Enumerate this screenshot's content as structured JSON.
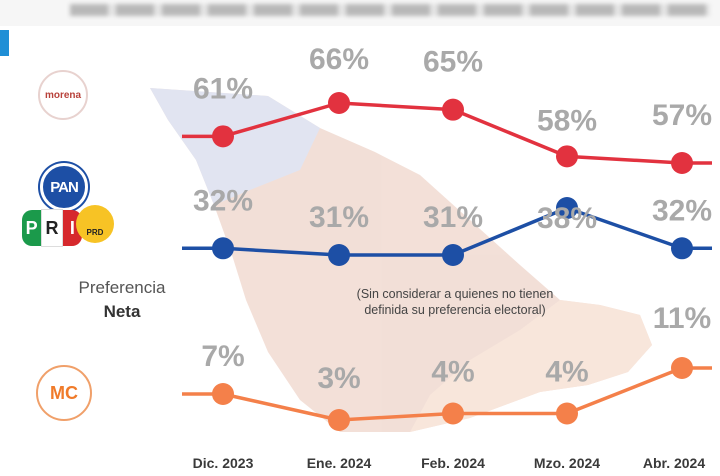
{
  "logos": {
    "morena": "morena",
    "pan": "PAN",
    "pri": [
      "P",
      "R",
      "I"
    ],
    "prd": "PRD",
    "mc": "MC"
  },
  "preference_label": {
    "line1": "Preferencia",
    "line2": "Neta"
  },
  "note": {
    "line1": "(Sin considerar a quienes no tienen",
    "line2": "definida su preferencia electoral)"
  },
  "colors": {
    "morena": "#e2323f",
    "pan_pri_prd": "#1d4fa5",
    "mc": "#f4804a",
    "label_gray": "#a9a9a9",
    "accent": "#1f8fd6"
  },
  "chart_data": {
    "type": "line",
    "title": "",
    "xlabel": "",
    "ylabel": "",
    "categories": [
      "Dic. 2023",
      "Ene. 2024",
      "Feb. 2024",
      "Mzo. 2024",
      "Abr. 2024"
    ],
    "ylim": [
      0,
      70
    ],
    "grid": false,
    "series": [
      {
        "values": [
          61,
          66,
          65,
          58,
          57
        ],
        "labels": [
          "61%",
          "66%",
          "65%",
          "58%",
          "57%"
        ],
        "logo": "morena"
      },
      {
        "values": [
          32,
          31,
          31,
          38,
          32
        ],
        "labels": [
          "32%",
          "31%",
          "31%",
          "38%",
          "32%"
        ],
        "logo": "PAN-PRI-PRD"
      },
      {
        "values": [
          7,
          3,
          4,
          4,
          11
        ],
        "labels": [
          "7%",
          "3%",
          "4%",
          "4%",
          "11%"
        ],
        "logo": "MC"
      }
    ]
  }
}
